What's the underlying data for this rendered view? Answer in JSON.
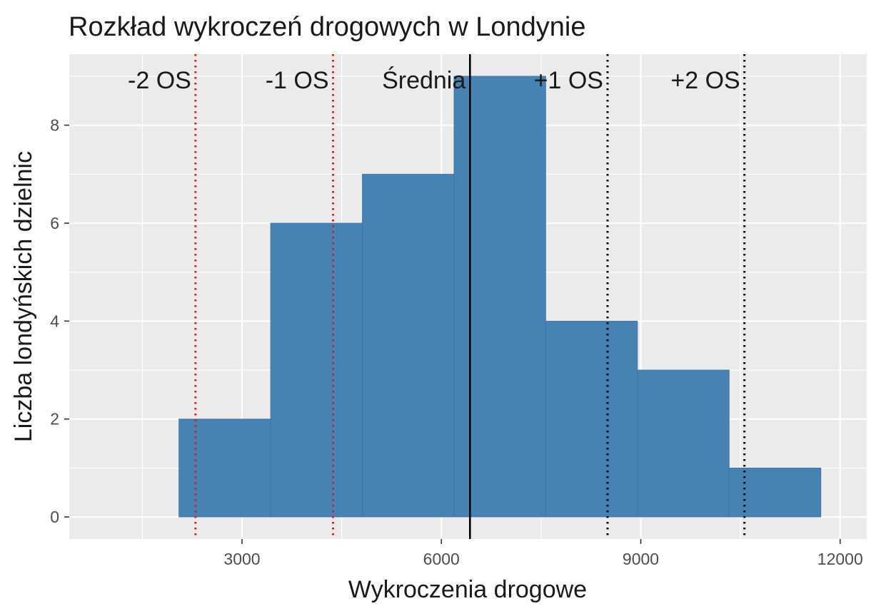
{
  "chart_data": {
    "type": "bar",
    "title": "Rozkład wykroczeń drogowych w Londynie",
    "xlabel": "Wykroczenia drogowe",
    "ylabel": "Liczba londyńskich dzielnic",
    "xlim": [
      400,
      12400
    ],
    "ylim": [
      -0.45,
      9.45
    ],
    "x_ticks": [
      3000,
      6000,
      9000,
      12000
    ],
    "y_ticks": [
      0,
      2,
      4,
      6,
      8
    ],
    "grid": true,
    "bins": [
      {
        "x0": 2050,
        "x1": 3430,
        "count": 2
      },
      {
        "x0": 3430,
        "x1": 4810,
        "count": 6
      },
      {
        "x0": 4810,
        "x1": 6190,
        "count": 7
      },
      {
        "x0": 6190,
        "x1": 7570,
        "count": 9
      },
      {
        "x0": 7570,
        "x1": 8950,
        "count": 4
      },
      {
        "x0": 8950,
        "x1": 10330,
        "count": 3
      },
      {
        "x0": 10330,
        "x1": 11710,
        "count": 1
      }
    ],
    "reference_lines": [
      {
        "label": "-2 OS",
        "x": 2300,
        "color": "#e31a1c",
        "style": "dotted"
      },
      {
        "label": "-1 OS",
        "x": 4370,
        "color": "#e31a1c",
        "style": "dotted"
      },
      {
        "label": "Średnia",
        "x": 6430,
        "color": "#000000",
        "style": "solid"
      },
      {
        "label": "+1 OS",
        "x": 8500,
        "color": "#000000",
        "style": "dotted"
      },
      {
        "label": "+2 OS",
        "x": 10560,
        "color": "#000000",
        "style": "dotted"
      }
    ],
    "colors": {
      "bar_fill": "#4682b4",
      "panel_background": "#ebebeb",
      "grid": "#ffffff"
    }
  }
}
